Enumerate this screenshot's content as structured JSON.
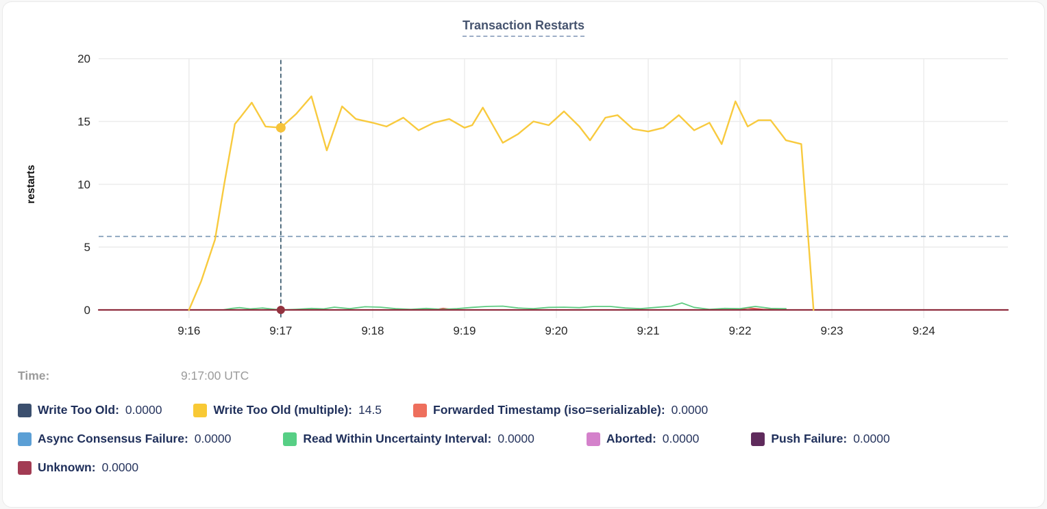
{
  "card": {
    "title": "Transaction Restarts"
  },
  "tooltip": {
    "time_label": "Time:",
    "time_value": "9:17:00 UTC"
  },
  "legend_rows": [
    [
      {
        "label": "Write Too Old:",
        "value": "0.0000",
        "color": "#3b4f6e"
      },
      {
        "label": "Write Too Old (multiple):",
        "value": "14.5",
        "color": "#f8c935"
      },
      {
        "label": "Forwarded Timestamp (iso=serializable):",
        "value": "0.0000",
        "color": "#ee6f5d"
      }
    ],
    [
      {
        "label": "Async Consensus Failure:",
        "value": "0.0000",
        "color": "#5b9fd5"
      },
      {
        "label": "Read Within Uncertainty Interval:",
        "value": "0.0000",
        "color": "#57cf85"
      },
      {
        "label": "Aborted:",
        "value": "0.0000",
        "color": "#d481cb"
      },
      {
        "label": "Push Failure:",
        "value": "0.0000",
        "color": "#5f2b5c"
      }
    ],
    [
      {
        "label": "Unknown:",
        "value": "0.0000",
        "color": "#a23b53"
      }
    ]
  ],
  "chart_data": {
    "type": "line",
    "title": "Transaction Restarts",
    "ylabel": "restarts",
    "ylim": [
      0,
      20
    ],
    "yticks": [
      0,
      5,
      10,
      15,
      20
    ],
    "xticks": [
      "9:16",
      "9:17",
      "9:18",
      "9:19",
      "9:20",
      "9:21",
      "9:22",
      "9:23",
      "9:24"
    ],
    "x_domain": [
      "9:15:01",
      "9:24:55"
    ],
    "grid": true,
    "legend_position": "bottom",
    "crosshair": {
      "time": "9:17:00",
      "y_value": 5.85,
      "v_color": "#35566b",
      "h_color": "#7795b2"
    },
    "hover_points": [
      {
        "series": "Write Too Old (multiple)",
        "time": "9:17:00",
        "value": 14.5,
        "color": "#f6c33a",
        "r": 7
      },
      {
        "series": "Unknown",
        "time": "9:17:00",
        "value": 0,
        "color": "#93323f",
        "r": 6
      }
    ],
    "series": [
      {
        "name": "Forwarded Timestamp (iso=serializable)",
        "color": "#e0504a",
        "width": 1.8,
        "points": [
          [
            "9:16:20",
            0
          ],
          [
            "9:18:40",
            0
          ],
          [
            "9:18:46",
            0.12
          ],
          [
            "9:18:54",
            0
          ],
          [
            "9:21:58",
            0
          ],
          [
            "9:22:05",
            0.15
          ],
          [
            "9:22:15",
            0.05
          ],
          [
            "9:22:30",
            0
          ]
        ]
      },
      {
        "name": "Read Within Uncertainty Interval",
        "color": "#5ecb81",
        "width": 1.8,
        "points": [
          [
            "9:16:22",
            0
          ],
          [
            "9:16:28",
            0.12
          ],
          [
            "9:16:33",
            0.18
          ],
          [
            "9:16:40",
            0.08
          ],
          [
            "9:16:48",
            0.15
          ],
          [
            "9:16:55",
            0.06
          ],
          [
            "9:17:00",
            0
          ],
          [
            "9:17:10",
            0.05
          ],
          [
            "9:17:20",
            0.12
          ],
          [
            "9:17:28",
            0.08
          ],
          [
            "9:17:35",
            0.22
          ],
          [
            "9:17:45",
            0.1
          ],
          [
            "9:17:55",
            0.25
          ],
          [
            "9:18:05",
            0.22
          ],
          [
            "9:18:15",
            0.1
          ],
          [
            "9:18:25",
            0.05
          ],
          [
            "9:18:35",
            0.12
          ],
          [
            "9:18:45",
            0.05
          ],
          [
            "9:18:55",
            0.1
          ],
          [
            "9:19:05",
            0.2
          ],
          [
            "9:19:15",
            0.28
          ],
          [
            "9:19:25",
            0.3
          ],
          [
            "9:19:35",
            0.15
          ],
          [
            "9:19:45",
            0.1
          ],
          [
            "9:19:55",
            0.2
          ],
          [
            "9:20:05",
            0.22
          ],
          [
            "9:20:15",
            0.18
          ],
          [
            "9:20:25",
            0.28
          ],
          [
            "9:20:35",
            0.28
          ],
          [
            "9:20:45",
            0.15
          ],
          [
            "9:20:55",
            0.1
          ],
          [
            "9:21:05",
            0.2
          ],
          [
            "9:21:15",
            0.3
          ],
          [
            "9:21:22",
            0.55
          ],
          [
            "9:21:30",
            0.2
          ],
          [
            "9:21:40",
            0.05
          ],
          [
            "9:21:50",
            0.12
          ],
          [
            "9:22:00",
            0.1
          ],
          [
            "9:22:10",
            0.28
          ],
          [
            "9:22:20",
            0.12
          ],
          [
            "9:22:30",
            0.1
          ]
        ]
      },
      {
        "name": "Unknown",
        "color": "#8e2c3e",
        "width": 2.2,
        "points": [
          [
            "9:15:01",
            0
          ],
          [
            "9:24:55",
            0
          ]
        ]
      },
      {
        "name": "Write Too Old (multiple)",
        "color": "#f8ca3e",
        "width": 2.4,
        "points": [
          [
            "9:16:00",
            0
          ],
          [
            "9:16:08",
            2.3
          ],
          [
            "9:16:17",
            5.6
          ],
          [
            "9:16:23",
            10.0
          ],
          [
            "9:16:30",
            14.8
          ],
          [
            "9:16:34",
            15.4
          ],
          [
            "9:16:41",
            16.5
          ],
          [
            "9:16:50",
            14.6
          ],
          [
            "9:17:00",
            14.5
          ],
          [
            "9:17:10",
            15.6
          ],
          [
            "9:17:20",
            17.0
          ],
          [
            "9:17:30",
            12.7
          ],
          [
            "9:17:40",
            16.2
          ],
          [
            "9:17:49",
            15.2
          ],
          [
            "9:18:00",
            14.9
          ],
          [
            "9:18:09",
            14.6
          ],
          [
            "9:18:20",
            15.3
          ],
          [
            "9:18:30",
            14.3
          ],
          [
            "9:18:40",
            14.9
          ],
          [
            "9:18:50",
            15.2
          ],
          [
            "9:19:00",
            14.5
          ],
          [
            "9:19:05",
            14.7
          ],
          [
            "9:19:12",
            16.1
          ],
          [
            "9:19:25",
            13.3
          ],
          [
            "9:19:35",
            14.0
          ],
          [
            "9:19:45",
            15.0
          ],
          [
            "9:19:55",
            14.7
          ],
          [
            "9:20:05",
            15.8
          ],
          [
            "9:20:15",
            14.6
          ],
          [
            "9:20:22",
            13.5
          ],
          [
            "9:20:32",
            15.3
          ],
          [
            "9:20:40",
            15.5
          ],
          [
            "9:20:50",
            14.4
          ],
          [
            "9:21:00",
            14.2
          ],
          [
            "9:21:10",
            14.5
          ],
          [
            "9:21:20",
            15.5
          ],
          [
            "9:21:30",
            14.3
          ],
          [
            "9:21:40",
            14.9
          ],
          [
            "9:21:48",
            13.2
          ],
          [
            "9:21:57",
            16.6
          ],
          [
            "9:22:05",
            14.6
          ],
          [
            "9:22:12",
            15.1
          ],
          [
            "9:22:20",
            15.1
          ],
          [
            "9:22:30",
            13.5
          ],
          [
            "9:22:40",
            13.2
          ],
          [
            "9:22:48",
            0
          ]
        ]
      }
    ]
  }
}
